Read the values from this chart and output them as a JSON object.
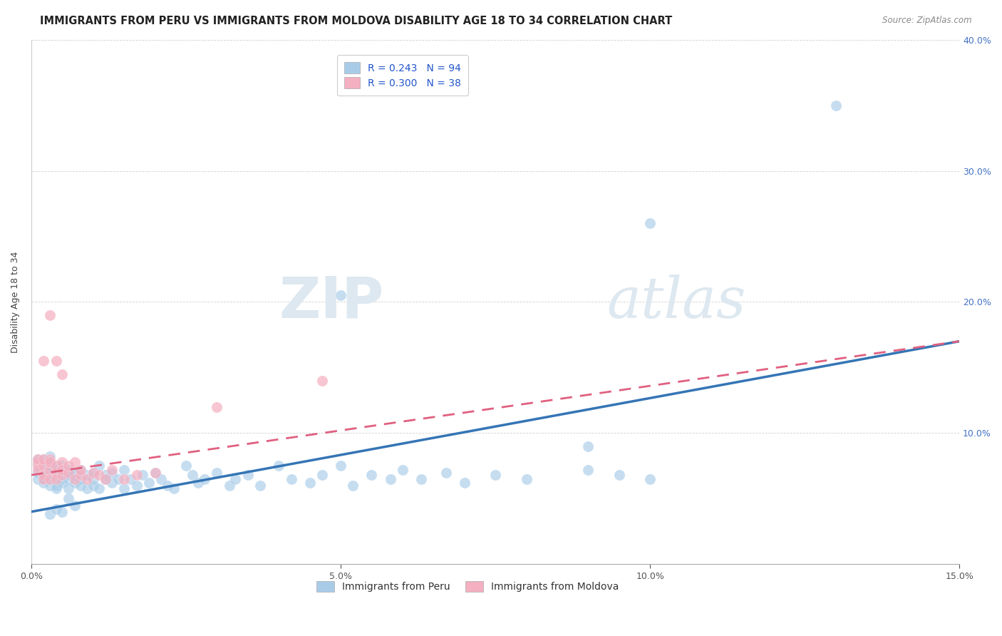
{
  "title": "IMMIGRANTS FROM PERU VS IMMIGRANTS FROM MOLDOVA DISABILITY AGE 18 TO 34 CORRELATION CHART",
  "source": "Source: ZipAtlas.com",
  "ylabel": "Disability Age 18 to 34",
  "xlim": [
    0.0,
    0.15
  ],
  "ylim": [
    0.0,
    0.4
  ],
  "xticks": [
    0.0,
    0.05,
    0.1,
    0.15
  ],
  "xticklabels": [
    "0.0%",
    "5.0%",
    "10.0%",
    "15.0%"
  ],
  "yticks": [
    0.0,
    0.1,
    0.2,
    0.3,
    0.4
  ],
  "yticklabels_right": [
    "",
    "10.0%",
    "20.0%",
    "30.0%",
    "40.0%"
  ],
  "peru_color": "#a8cce8",
  "moldova_color": "#f4afc0",
  "peru_line_color": "#3575b5",
  "moldova_line_color": "#e06080",
  "peru_R": 0.243,
  "peru_N": 94,
  "moldova_R": 0.3,
  "moldova_N": 38,
  "background_color": "#ffffff",
  "grid_color": "#cccccc",
  "watermark_zip": "ZIP",
  "watermark_atlas": "atlas",
  "watermark_color": "#dde8f0",
  "title_fontsize": 10.5,
  "axis_label_fontsize": 9,
  "tick_fontsize": 9,
  "legend_fontsize": 10,
  "peru_scatter_x": [
    0.001,
    0.001,
    0.001,
    0.001,
    0.001,
    0.002,
    0.002,
    0.002,
    0.002,
    0.002,
    0.002,
    0.003,
    0.003,
    0.003,
    0.003,
    0.003,
    0.003,
    0.004,
    0.004,
    0.004,
    0.004,
    0.004,
    0.005,
    0.005,
    0.005,
    0.005,
    0.005,
    0.006,
    0.006,
    0.006,
    0.006,
    0.007,
    0.007,
    0.007,
    0.008,
    0.008,
    0.008,
    0.009,
    0.009,
    0.01,
    0.01,
    0.01,
    0.011,
    0.011,
    0.012,
    0.012,
    0.013,
    0.013,
    0.014,
    0.015,
    0.015,
    0.016,
    0.017,
    0.018,
    0.019,
    0.02,
    0.021,
    0.022,
    0.023,
    0.025,
    0.026,
    0.027,
    0.028,
    0.03,
    0.032,
    0.033,
    0.035,
    0.037,
    0.04,
    0.042,
    0.045,
    0.047,
    0.05,
    0.052,
    0.055,
    0.058,
    0.06,
    0.063,
    0.067,
    0.07,
    0.075,
    0.08,
    0.09,
    0.095,
    0.1,
    0.003,
    0.004,
    0.005,
    0.006,
    0.007,
    0.05,
    0.09,
    0.1,
    0.13
  ],
  "peru_scatter_y": [
    0.075,
    0.078,
    0.08,
    0.065,
    0.07,
    0.072,
    0.068,
    0.078,
    0.065,
    0.08,
    0.062,
    0.07,
    0.075,
    0.065,
    0.078,
    0.06,
    0.082,
    0.068,
    0.072,
    0.06,
    0.075,
    0.058,
    0.065,
    0.07,
    0.075,
    0.062,
    0.068,
    0.065,
    0.072,
    0.068,
    0.058,
    0.062,
    0.068,
    0.07,
    0.065,
    0.06,
    0.072,
    0.058,
    0.068,
    0.065,
    0.07,
    0.06,
    0.075,
    0.058,
    0.068,
    0.065,
    0.062,
    0.07,
    0.065,
    0.072,
    0.058,
    0.065,
    0.06,
    0.068,
    0.062,
    0.07,
    0.065,
    0.06,
    0.058,
    0.075,
    0.068,
    0.062,
    0.065,
    0.07,
    0.06,
    0.065,
    0.068,
    0.06,
    0.075,
    0.065,
    0.062,
    0.068,
    0.075,
    0.06,
    0.068,
    0.065,
    0.072,
    0.065,
    0.07,
    0.062,
    0.068,
    0.065,
    0.072,
    0.068,
    0.065,
    0.038,
    0.042,
    0.04,
    0.05,
    0.045,
    0.205,
    0.09,
    0.26,
    0.35
  ],
  "moldova_scatter_x": [
    0.001,
    0.001,
    0.001,
    0.001,
    0.002,
    0.002,
    0.002,
    0.002,
    0.003,
    0.003,
    0.003,
    0.003,
    0.004,
    0.004,
    0.004,
    0.005,
    0.005,
    0.005,
    0.006,
    0.006,
    0.007,
    0.007,
    0.008,
    0.008,
    0.009,
    0.01,
    0.011,
    0.012,
    0.013,
    0.015,
    0.017,
    0.02,
    0.002,
    0.003,
    0.004,
    0.005,
    0.047,
    0.03
  ],
  "moldova_scatter_y": [
    0.075,
    0.078,
    0.072,
    0.08,
    0.068,
    0.075,
    0.08,
    0.065,
    0.072,
    0.08,
    0.065,
    0.078,
    0.07,
    0.075,
    0.065,
    0.068,
    0.078,
    0.072,
    0.07,
    0.075,
    0.065,
    0.078,
    0.068,
    0.072,
    0.065,
    0.07,
    0.068,
    0.065,
    0.072,
    0.065,
    0.068,
    0.07,
    0.155,
    0.19,
    0.155,
    0.145,
    0.14,
    0.12
  ],
  "peru_line_x0": 0.0,
  "peru_line_y0": 0.04,
  "peru_line_x1": 0.15,
  "peru_line_y1": 0.17,
  "moldova_line_x0": 0.0,
  "moldova_line_y0": 0.068,
  "moldova_line_x1": 0.15,
  "moldova_line_y1": 0.17
}
